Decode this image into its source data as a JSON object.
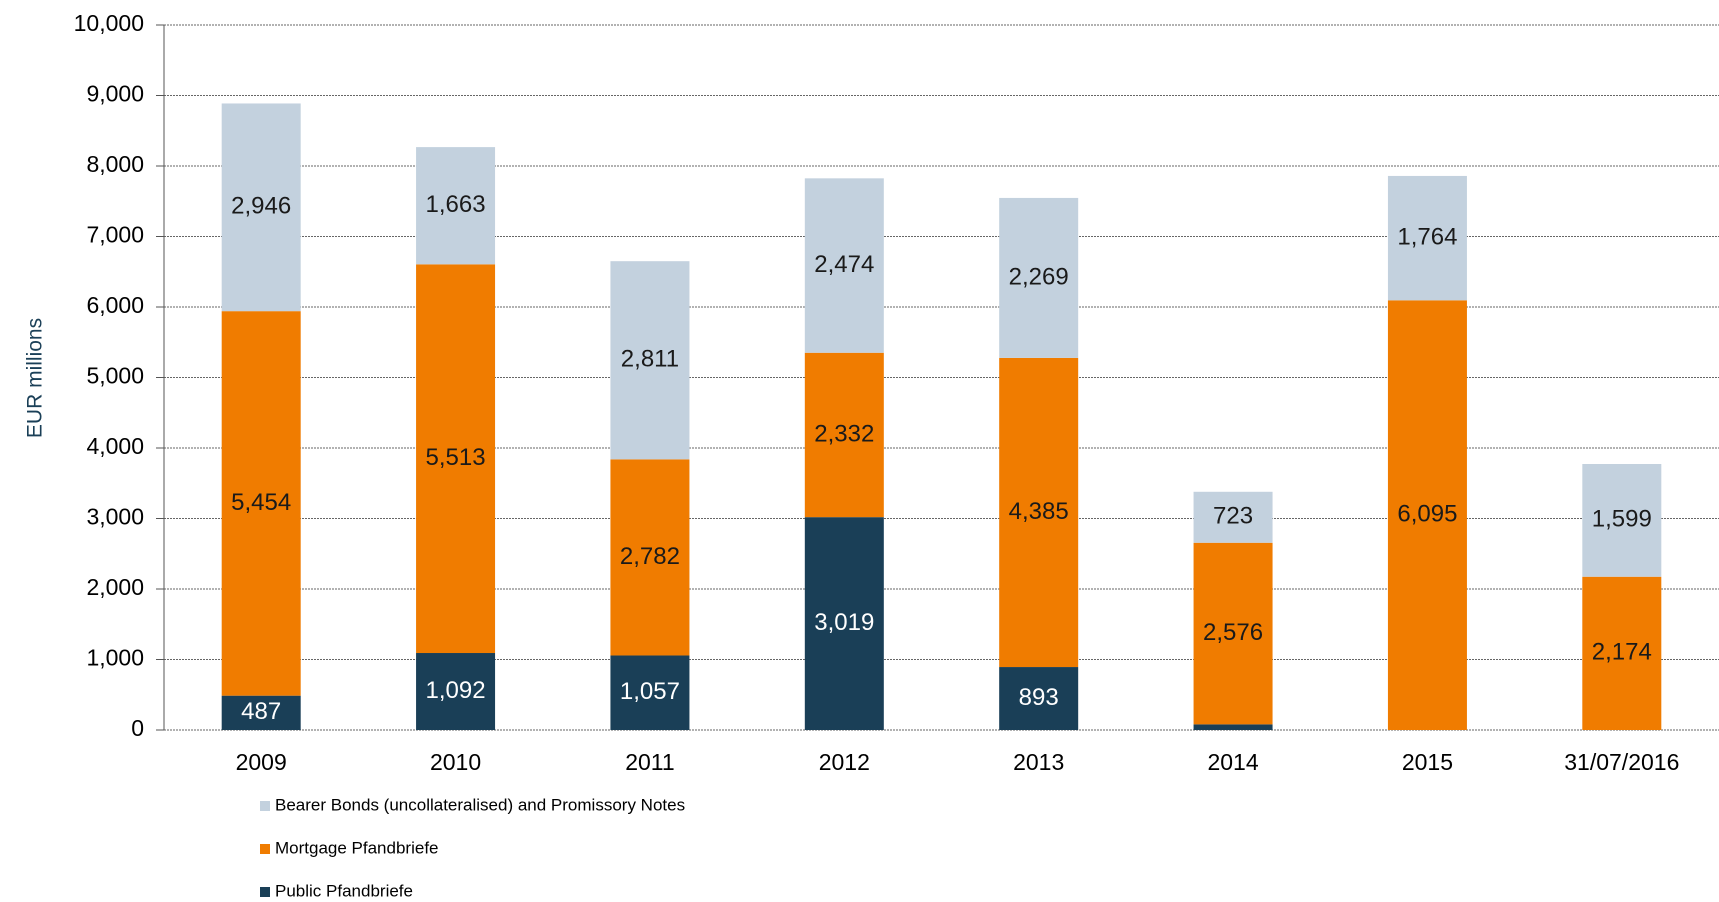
{
  "chart_data": {
    "type": "stacked_bar",
    "y_label": "EUR millions",
    "categories": [
      "2009",
      "2010",
      "2011",
      "2012",
      "2013",
      "2014",
      "2015",
      "31/07/2016"
    ],
    "series": [
      {
        "name": "Public Pfandbriefe",
        "color": "#1a3f57",
        "label_color": "#ffffff",
        "values": [
          487,
          1092,
          1057,
          3019,
          893,
          80,
          0,
          0
        ],
        "value_labels": [
          "487",
          "1,092",
          "1,057",
          "3,019",
          "893",
          null,
          null,
          null
        ]
      },
      {
        "name": "Mortgage Pfandbriefe",
        "color": "#f07c00",
        "label_color": "#1a1a1a",
        "values": [
          5454,
          5513,
          2782,
          2332,
          4385,
          2576,
          6095,
          2174
        ],
        "value_labels": [
          "5,454",
          "5,513",
          "2,782",
          "2,332",
          "4,385",
          "2,576",
          "6,095",
          "2,174"
        ]
      },
      {
        "name": "Bearer Bonds (uncollateralised) and Promissory Notes",
        "color": "#c3d1de",
        "label_color": "#1a1a1a",
        "values": [
          2946,
          1663,
          2811,
          2474,
          2269,
          723,
          1764,
          1599
        ],
        "value_labels": [
          "2,946",
          "1,663",
          "2,811",
          "2,474",
          "2,269",
          "723",
          "1,764",
          "1,599"
        ]
      }
    ],
    "ylim": [
      0,
      10000
    ],
    "yticks": [
      0,
      {
        "value": 1000,
        "label": "1,000"
      },
      {
        "value": 2000,
        "label": "2,000"
      },
      {
        "value": 3000,
        "label": "3,000"
      },
      {
        "value": 4000,
        "label": "4,000"
      },
      {
        "value": 5000,
        "label": "5,000"
      },
      {
        "value": 6000,
        "label": "6,000"
      },
      {
        "value": 7000,
        "label": "7,000"
      },
      {
        "value": 8000,
        "label": "8,000"
      },
      {
        "value": 9000,
        "label": "9,000"
      },
      {
        "value": 10000,
        "label": "10,000"
      }
    ],
    "grid": true
  }
}
